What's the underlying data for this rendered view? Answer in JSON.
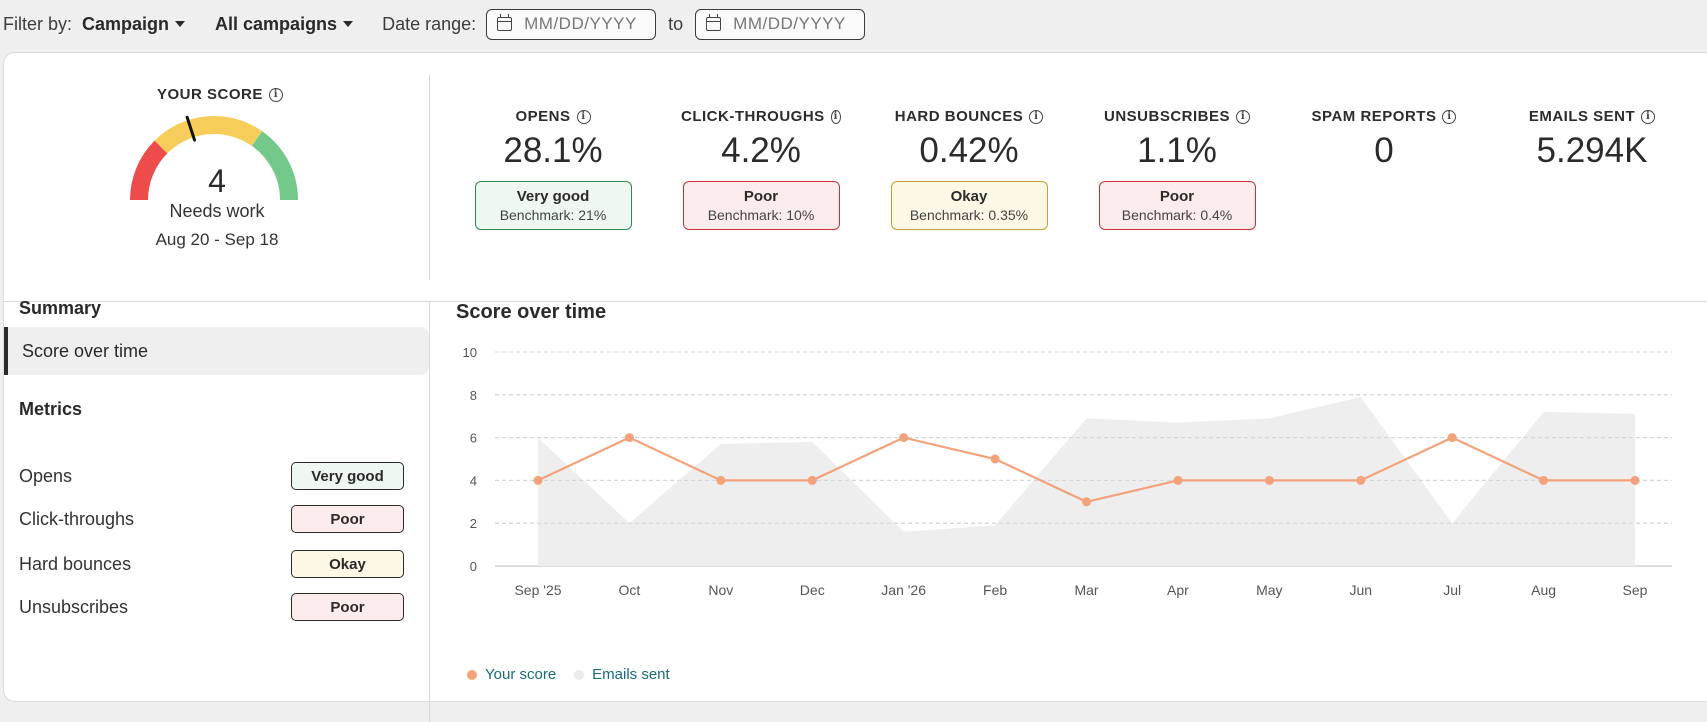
{
  "filter": {
    "label": "Filter by:",
    "campaign_type": "Campaign",
    "campaign_value": "All campaigns",
    "date_label": "Date range:",
    "date_from_placeholder": "MM/DD/YYYY",
    "date_to_word": "to",
    "date_to_placeholder": "MM/DD/YYYY"
  },
  "score": {
    "title": "YOUR SCORE",
    "value": "4",
    "state": "Needs work",
    "date_range": "Aug 20 - Sep 18",
    "gauge_colors": {
      "red": "#ee4b4b",
      "yellow": "#f6cd5a",
      "green": "#74c98a"
    }
  },
  "metrics": [
    {
      "title": "OPENS",
      "value": "28.1%",
      "status": "Very good",
      "benchmark": "Benchmark: 21%"
    },
    {
      "title": "CLICK-THROUGHS",
      "value": "4.2%",
      "status": "Poor",
      "benchmark": "Benchmark: 10%"
    },
    {
      "title": "HARD BOUNCES",
      "value": "0.42%",
      "status": "Okay",
      "benchmark": "Benchmark: 0.35%"
    },
    {
      "title": "UNSUBSCRIBES",
      "value": "1.1%",
      "status": "Poor",
      "benchmark": "Benchmark: 0.4%"
    },
    {
      "title": "SPAM REPORTS",
      "value": "0"
    },
    {
      "title": "EMAILS SENT",
      "value": "5.294K"
    }
  ],
  "sidebar": {
    "summary_heading": "Summary",
    "active_item": "Score over time",
    "metrics_heading": "Metrics",
    "items": [
      {
        "label": "Opens",
        "status": "Very good"
      },
      {
        "label": "Click-throughs",
        "status": "Poor"
      },
      {
        "label": "Hard bounces",
        "status": "Okay"
      },
      {
        "label": "Unsubscribes",
        "status": "Poor"
      }
    ]
  },
  "chart_title": "Score over time",
  "chart_data": {
    "type": "line",
    "categories": [
      "Sep '25",
      "Oct",
      "Nov",
      "Dec",
      "Jan '26",
      "Feb",
      "Mar",
      "Apr",
      "May",
      "Jun",
      "Jul",
      "Aug",
      "Sep"
    ],
    "ylim": [
      0,
      10
    ],
    "yticks": [
      "0",
      "2",
      "4",
      "6",
      "8",
      "10"
    ],
    "grid": true,
    "legend_position": "bottom-left",
    "series": [
      {
        "name": "Your score",
        "type": "line",
        "color": "#f4a27c",
        "values": [
          4,
          6,
          4,
          4,
          6,
          5,
          3,
          4,
          4,
          4,
          6,
          4,
          4
        ]
      },
      {
        "name": "Emails sent",
        "type": "area",
        "color": "#eeeeee",
        "values": [
          6,
          2,
          5.7,
          5.8,
          1.6,
          1.9,
          6.9,
          6.7,
          6.9,
          7.9,
          2.0,
          7.2,
          7.1
        ]
      }
    ]
  },
  "legend": {
    "score_label": "Your score",
    "emails_label": "Emails sent"
  }
}
